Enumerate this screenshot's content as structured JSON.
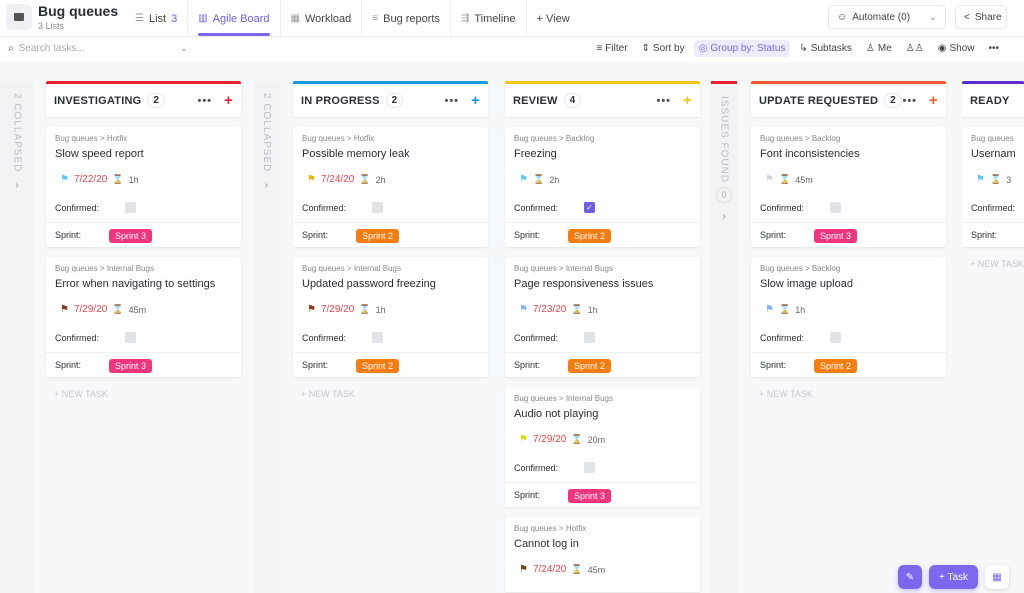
{
  "header": {
    "title": "Bug queues",
    "subtitle": "3 Lists",
    "views": [
      {
        "label": "List",
        "count": "3",
        "icon": "list-icon"
      },
      {
        "label": "Agile Board",
        "icon": "board-icon",
        "active": true
      },
      {
        "label": "Workload",
        "icon": "grid-icon"
      },
      {
        "label": "Bug reports",
        "icon": "doc-icon"
      },
      {
        "label": "Timeline",
        "icon": "timeline-icon"
      },
      {
        "label": "+ View",
        "icon": "plus-icon"
      }
    ],
    "automate": "Automate (0)",
    "share": "Share"
  },
  "toolbar": {
    "search_placeholder": "Search tasks...",
    "filter": "Filter",
    "sort": "Sort by",
    "group": "Group by: Status",
    "subtasks": "Subtasks",
    "me": "Me",
    "show": "Show"
  },
  "board": {
    "collapsed_left": "2 COLLAPSED",
    "collapsed_mid": "2 COLLAPSED",
    "issues_found": "ISSUES FOUND",
    "issues_found_count": "0",
    "new_task": "+ NEW TASK",
    "confirmed_label": "Confirmed:",
    "sprint_label": "Sprint:",
    "columns": [
      {
        "name": "INVESTIGATING",
        "count": "2",
        "color": "#e8222e",
        "cards": [
          {
            "crumb": "Bug queues > Hotfix",
            "title": "Slow speed report",
            "flag": "#5ac8fa",
            "date": "7/22/20",
            "est": "1h",
            "confirmed": false,
            "sprint": "Sprint 3"
          },
          {
            "crumb": "Bug queues > Internal Bugs",
            "title": "Error when navigating to settings",
            "flag": "#8b3a1a",
            "date": "7/29/20",
            "est": "45m",
            "confirmed": false,
            "sprint": "Sprint 3"
          }
        ]
      },
      {
        "name": "IN PROGRESS",
        "count": "2",
        "color": "#1a9bd7",
        "cards": [
          {
            "crumb": "Bug queues > Hotfix",
            "title": "Possible memory leak",
            "flag": "#f5b800",
            "date": "7/24/20",
            "est": "2h",
            "confirmed": false,
            "sprint": "Sprint 2"
          },
          {
            "crumb": "Bug queues > Internal Bugs",
            "title": "Updated password freezing",
            "flag": "#8b3a1a",
            "date": "7/29/20",
            "est": "1h",
            "confirmed": false,
            "sprint": "Sprint 2"
          }
        ]
      },
      {
        "name": "REVIEW",
        "count": "4",
        "color": "#f5c518",
        "cards": [
          {
            "crumb": "Bug queues > Backlog",
            "title": "Freezing",
            "flag": "#5ac8fa",
            "date": "",
            "est": "2h",
            "confirmed": true,
            "sprint": "Sprint 2"
          },
          {
            "crumb": "Bug queues > Internal Bugs",
            "title": "Page responsiveness issues",
            "flag": "#7fb2f0",
            "date": "7/23/20",
            "est": "1h",
            "confirmed": false,
            "sprint": "Sprint 2"
          },
          {
            "crumb": "Bug queues > Internal Bugs",
            "title": "Audio not playing",
            "flag": "#d4e000",
            "date": "7/29/20",
            "est": "20m",
            "confirmed": false,
            "sprint": "Sprint 3"
          },
          {
            "crumb": "Bug queues > Hotfix",
            "title": "Cannot log in",
            "flag": "#6b4a1a",
            "date": "7/24/20",
            "est": "45m",
            "confirmed": false,
            "sprint": ""
          }
        ]
      },
      {
        "name": "UPDATE REQUESTED",
        "count": "2",
        "color": "#f05a28",
        "cards": [
          {
            "crumb": "Bug queues > Backlog",
            "title": "Font inconsistencies",
            "flag": "#d0d3d8",
            "date": "",
            "est": "45m",
            "confirmed": false,
            "sprint": "Sprint 3"
          },
          {
            "crumb": "Bug queues > Backlog",
            "title": "Slow image upload",
            "flag": "#7fb2f0",
            "date": "",
            "est": "1h",
            "confirmed": false,
            "sprint": "Sprint 2"
          }
        ]
      },
      {
        "name": "READY",
        "count": "",
        "color": "#5b2ccf",
        "cards": [
          {
            "crumb": "Bug queues",
            "title": "Usernam",
            "flag": "#5ac8fa",
            "date": "",
            "est": "3",
            "confirmed": false,
            "sprint": ""
          }
        ]
      }
    ]
  },
  "sprint_colors": {
    "Sprint 3": "#f0357d",
    "Sprint 2": "#f57c10"
  },
  "fab": {
    "task": "+ Task"
  }
}
